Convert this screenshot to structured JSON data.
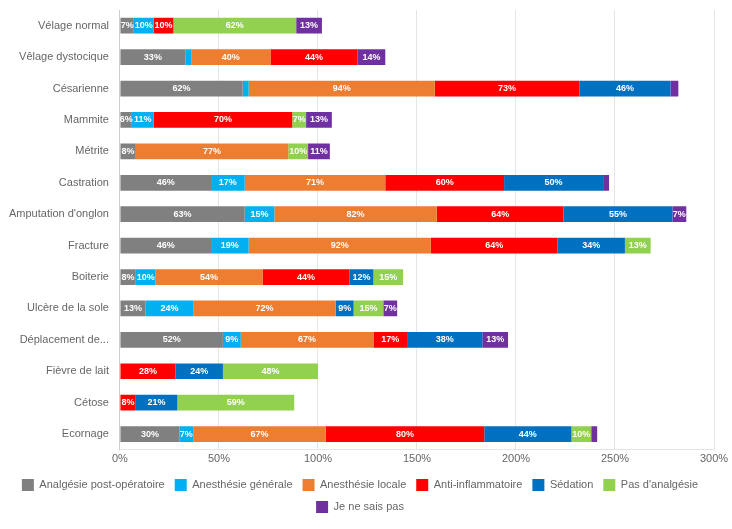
{
  "chart_data": {
    "type": "bar",
    "orientation": "horizontal",
    "stacked": true,
    "categories": [
      "Vélage normal",
      "Vêlage dystocique",
      "Césarienne",
      "Mammite",
      "Métrite",
      "Castration",
      "Amputation d'onglon",
      "Fracture",
      "Boiterie",
      "Ulcère de la sole",
      "Déplacement de...",
      "Fièvre de lait",
      "Cétose",
      "Ecornage"
    ],
    "series": [
      {
        "name": "Analgésie post-opératoire",
        "color": "#808080",
        "values": [
          7,
          33,
          62,
          6,
          8,
          46,
          63,
          46,
          8,
          13,
          52,
          0,
          0,
          30
        ],
        "value_labels": [
          "7%",
          "33%",
          "62%",
          "6%",
          "8%",
          "46%",
          "63%",
          "46%",
          "8%",
          "13%",
          "52%",
          null,
          null,
          "30%"
        ]
      },
      {
        "name": "Anesthésie générale",
        "color": "#00B0F0",
        "values": [
          10,
          3,
          3,
          11,
          0,
          17,
          15,
          19,
          10,
          24,
          9,
          0,
          0,
          7
        ],
        "value_labels": [
          "10%",
          null,
          null,
          "11%",
          null,
          "17%",
          "15%",
          "19%",
          "10%",
          "24%",
          "9%",
          null,
          null,
          "7%"
        ]
      },
      {
        "name": "Anesthésie locale",
        "color": "#ED7D31",
        "values": [
          0,
          40,
          94,
          0,
          77,
          71,
          82,
          92,
          54,
          72,
          67,
          0,
          0,
          67
        ],
        "value_labels": [
          null,
          "40%",
          "94%",
          null,
          "77%",
          "71%",
          "82%",
          "92%",
          "54%",
          "72%",
          "67%",
          null,
          null,
          "67%"
        ]
      },
      {
        "name": "Anti-inflammatoire",
        "color": "#FF0000",
        "values": [
          10,
          44,
          73,
          70,
          0,
          60,
          64,
          64,
          44,
          0,
          17,
          28,
          8,
          80
        ],
        "value_labels": [
          "10%",
          "44%",
          "73%",
          "70%",
          null,
          "60%",
          "64%",
          "64%",
          "44%",
          null,
          "17%",
          "28%",
          "8%",
          "80%"
        ]
      },
      {
        "name": "Sédation",
        "color": "#0070C0",
        "values": [
          0,
          0,
          46,
          0,
          0,
          50,
          55,
          34,
          12,
          9,
          38,
          24,
          21,
          44
        ],
        "value_labels": [
          null,
          null,
          "46%",
          null,
          null,
          "50%",
          "55%",
          "34%",
          "12%",
          "9%",
          "38%",
          "24%",
          "21%",
          "44%"
        ]
      },
      {
        "name": "Pas d'analgésie",
        "color": "#92D050",
        "values": [
          62,
          0,
          0,
          7,
          10,
          0,
          0,
          13,
          15,
          15,
          0,
          48,
          59,
          10
        ],
        "value_labels": [
          "62%",
          null,
          null,
          "7%",
          "10%",
          null,
          null,
          "13%",
          "15%",
          "15%",
          null,
          "48%",
          "59%",
          "10%"
        ]
      },
      {
        "name": "Je ne sais pas",
        "color": "#7030A0",
        "values": [
          13,
          14,
          4,
          13,
          11,
          3,
          7,
          0,
          0,
          7,
          13,
          0,
          0,
          3
        ],
        "value_labels": [
          "13%",
          "14%",
          null,
          "13%",
          "11%",
          null,
          "7%",
          null,
          null,
          "7%",
          "13%",
          null,
          null,
          null
        ]
      }
    ],
    "xlim": [
      0,
      300
    ],
    "xticks": [
      {
        "value": 0,
        "label": "0%"
      },
      {
        "value": 50,
        "label": "50%"
      },
      {
        "value": 100,
        "label": "100%"
      },
      {
        "value": 150,
        "label": "150%"
      },
      {
        "value": 200,
        "label": "200%"
      },
      {
        "value": 250,
        "label": "250%"
      },
      {
        "value": 300,
        "label": "300%"
      }
    ],
    "grid": true,
    "legend": "bottom",
    "data_labels": true
  }
}
